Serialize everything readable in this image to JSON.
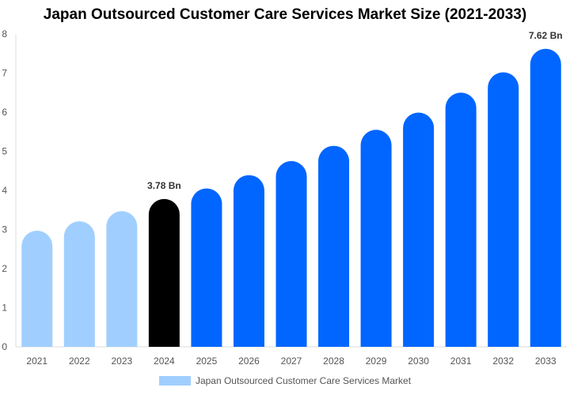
{
  "chart_data": {
    "type": "bar",
    "title": "Japan Outsourced Customer Care Services Market Size (2021-2033)",
    "categories": [
      "2021",
      "2022",
      "2023",
      "2024",
      "2025",
      "2026",
      "2027",
      "2028",
      "2029",
      "2030",
      "2031",
      "2032",
      "2033"
    ],
    "series": [
      {
        "name": "Japan Outsourced Customer Care Services Market",
        "values": [
          2.97,
          3.21,
          3.47,
          3.78,
          4.05,
          4.39,
          4.75,
          5.14,
          5.55,
          5.99,
          6.5,
          7.02,
          7.62
        ]
      }
    ],
    "data_labels": {
      "3": "3.78 Bn",
      "12": "7.62 Bn"
    },
    "ylim": [
      0,
      8
    ],
    "yticks": [
      0,
      1,
      2,
      3,
      4,
      5,
      6,
      7,
      8
    ],
    "xlabel": "",
    "ylabel": "",
    "grid": false,
    "legend": "bottom",
    "colors": {
      "historical": "#a0cfff",
      "current": "#000000",
      "forecast": "#0066ff"
    }
  }
}
